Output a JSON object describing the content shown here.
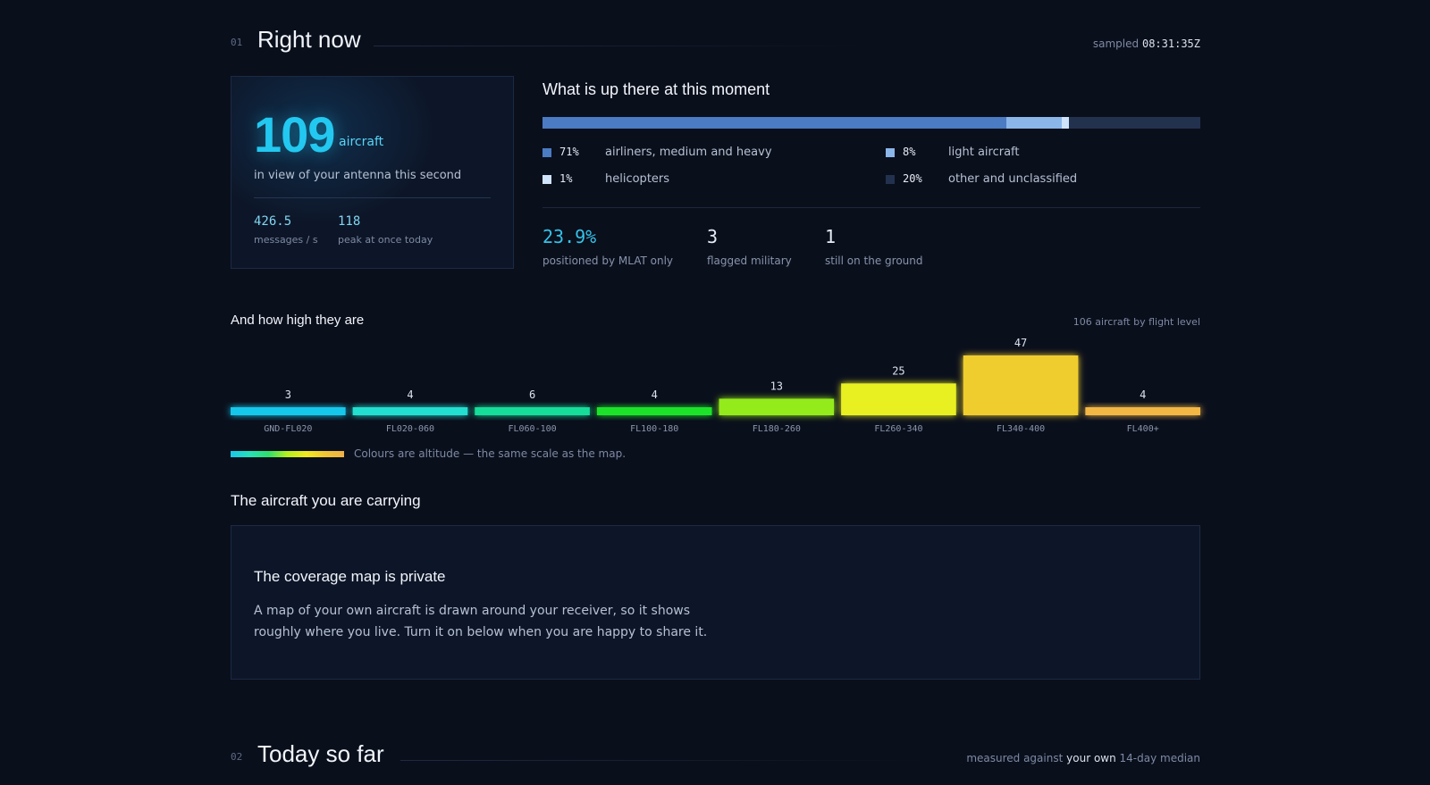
{
  "section1": {
    "num": "01",
    "title": "Right now",
    "meta_label": "sampled",
    "meta_value": "08:31:35Z"
  },
  "count_card": {
    "value": "109",
    "unit": "aircraft",
    "caption": "in view of your antenna this second",
    "stats": [
      {
        "value": "426.5",
        "label": "messages / s"
      },
      {
        "value": "118",
        "label": "peak at once today"
      }
    ]
  },
  "composition": {
    "title": "What is up there at this moment",
    "segments": [
      {
        "pct": "71%",
        "fraction": 0.705,
        "label": "airliners, medium and heavy",
        "color": "#4a7bc3"
      },
      {
        "pct": "8%",
        "fraction": 0.085,
        "label": "light aircraft",
        "color": "#8bb6ea"
      },
      {
        "pct": "1%",
        "fraction": 0.01,
        "label": "helicopters",
        "color": "#cfe3fb"
      },
      {
        "pct": "20%",
        "fraction": 0.2,
        "label": "other and unclassified",
        "color": "#22314e"
      }
    ],
    "kpis": [
      {
        "value": "23.9%",
        "label": "positioned by MLAT only",
        "accent": true
      },
      {
        "value": "3",
        "label": "flagged military",
        "accent": false
      },
      {
        "value": "1",
        "label": "still on the ground",
        "accent": false
      }
    ]
  },
  "altitude": {
    "title": "And how high they are",
    "meta": "106 aircraft by flight level",
    "legend_text": "Colours are altitude — the same scale as the map."
  },
  "chart_data": {
    "type": "bar",
    "title": "And how high they are",
    "categories": [
      "GND-FL020",
      "FL020-060",
      "FL060-100",
      "FL100-180",
      "FL180-260",
      "FL260-340",
      "FL340-400",
      "FL400+"
    ],
    "values": [
      3,
      4,
      6,
      4,
      13,
      25,
      47,
      4
    ],
    "colors": [
      "#19c7ec",
      "#22dfd0",
      "#19dd9a",
      "#1ce32c",
      "#94eb1c",
      "#e9f021",
      "#f0cd2d",
      "#f2b745"
    ],
    "ylim": [
      0,
      47
    ]
  },
  "carrying": {
    "title": "The aircraft you are carrying",
    "card_title": "The coverage map is private",
    "card_text": "A map of your own aircraft is drawn around your receiver, so it shows roughly where you live. Turn it on below when you are happy to share it."
  },
  "section2": {
    "num": "02",
    "title": "Today so far",
    "meta_prefix": "measured against",
    "meta_strong": "your own",
    "meta_suffix": "14-day median"
  }
}
